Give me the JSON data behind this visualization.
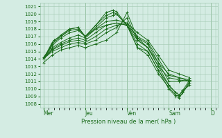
{
  "title": "Pression niveau de la mer( hPa )",
  "bg_color": "#d4ece3",
  "grid_color": "#a0c8b0",
  "line_color": "#1a6b1a",
  "ylim": [
    1007.5,
    1021.5
  ],
  "yticks": [
    1008,
    1009,
    1010,
    1011,
    1012,
    1013,
    1014,
    1015,
    1016,
    1017,
    1018,
    1019,
    1020,
    1021
  ],
  "xtick_labels": [
    "Mer",
    "Jeu",
    "Ven",
    "Sam",
    "D"
  ],
  "xtick_positions": [
    0,
    48,
    96,
    144,
    192
  ],
  "xlim": [
    -4,
    200
  ],
  "lines": [
    [
      0,
      1013.5,
      10,
      1014.5,
      20,
      1015.2,
      30,
      1015.5,
      40,
      1015.8,
      48,
      1015.5,
      60,
      1016.0,
      72,
      1016.5,
      84,
      1017.5,
      96,
      1020.2,
      108,
      1016.8,
      120,
      1015.5,
      132,
      1013.5,
      144,
      1011.0,
      156,
      1011.0,
      168,
      1011.2
    ],
    [
      0,
      1014.0,
      10,
      1015.0,
      20,
      1015.5,
      30,
      1016.0,
      40,
      1016.2,
      48,
      1016.0,
      60,
      1016.5,
      72,
      1017.5,
      84,
      1018.2,
      96,
      1019.5,
      108,
      1016.5,
      120,
      1015.5,
      132,
      1013.0,
      144,
      1011.5,
      156,
      1011.2,
      168,
      1011.0
    ],
    [
      0,
      1014.0,
      10,
      1015.2,
      20,
      1015.8,
      30,
      1016.3,
      40,
      1016.5,
      48,
      1016.2,
      60,
      1017.0,
      72,
      1018.0,
      84,
      1018.5,
      96,
      1018.8,
      108,
      1016.8,
      120,
      1016.0,
      132,
      1013.5,
      144,
      1012.0,
      156,
      1011.5,
      168,
      1011.0
    ],
    [
      0,
      1014.0,
      10,
      1015.3,
      20,
      1016.0,
      30,
      1016.5,
      40,
      1016.8,
      48,
      1016.5,
      60,
      1017.5,
      72,
      1018.5,
      84,
      1018.8,
      96,
      1018.5,
      108,
      1017.0,
      120,
      1016.2,
      132,
      1014.0,
      144,
      1011.8,
      156,
      1011.5,
      168,
      1011.2
    ],
    [
      0,
      1014.0,
      10,
      1015.5,
      20,
      1016.2,
      30,
      1016.8,
      40,
      1017.2,
      48,
      1016.8,
      60,
      1018.0,
      72,
      1019.0,
      84,
      1019.2,
      96,
      1018.8,
      108,
      1017.5,
      120,
      1016.5,
      132,
      1014.5,
      144,
      1012.5,
      156,
      1012.0,
      168,
      1011.5
    ],
    [
      0,
      1014.0,
      10,
      1015.8,
      20,
      1016.8,
      30,
      1017.5,
      40,
      1017.8,
      48,
      1017.0,
      60,
      1018.0,
      72,
      1018.5,
      84,
      1018.8,
      96,
      1018.5,
      108,
      1016.5,
      120,
      1015.5,
      132,
      1013.0,
      144,
      1010.5,
      152,
      1009.5,
      156,
      1009.2,
      160,
      1009.8,
      168,
      1010.5
    ],
    [
      0,
      1014.0,
      10,
      1016.0,
      20,
      1017.0,
      30,
      1017.8,
      40,
      1018.0,
      48,
      1017.0,
      60,
      1018.2,
      72,
      1019.5,
      80,
      1019.8,
      84,
      1020.0,
      96,
      1018.5,
      108,
      1016.0,
      120,
      1015.0,
      132,
      1012.5,
      144,
      1010.0,
      152,
      1009.0,
      156,
      1008.8,
      160,
      1009.5,
      168,
      1010.8
    ],
    [
      0,
      1014.0,
      10,
      1016.2,
      20,
      1017.2,
      30,
      1018.0,
      40,
      1018.2,
      48,
      1017.0,
      60,
      1018.5,
      72,
      1020.2,
      80,
      1020.5,
      84,
      1020.3,
      96,
      1018.5,
      108,
      1015.5,
      120,
      1014.5,
      132,
      1012.0,
      144,
      1010.2,
      152,
      1009.2,
      156,
      1009.0,
      160,
      1009.5,
      168,
      1011.0
    ],
    [
      0,
      1014.2,
      8,
      1015.5,
      12,
      1016.5,
      20,
      1017.0,
      30,
      1018.0,
      40,
      1018.2,
      48,
      1017.0,
      60,
      1018.5,
      72,
      1019.8,
      80,
      1020.2,
      84,
      1020.0,
      96,
      1018.5,
      108,
      1015.5,
      120,
      1015.0,
      132,
      1012.5,
      144,
      1010.5,
      152,
      1009.5,
      156,
      1009.2,
      160,
      1009.8,
      168,
      1011.2
    ]
  ]
}
